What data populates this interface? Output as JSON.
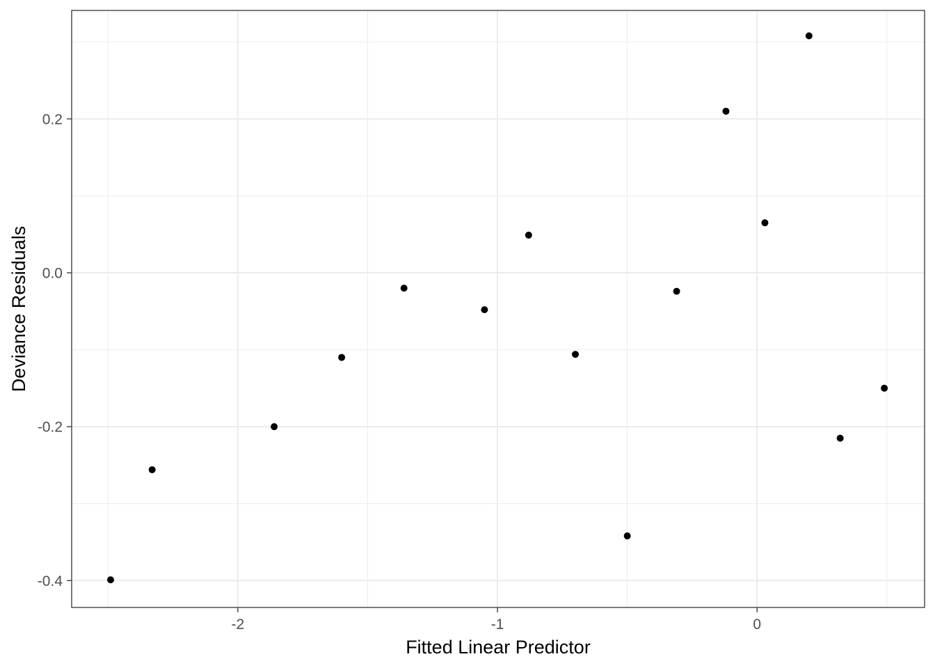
{
  "chart_data": {
    "type": "scatter",
    "title": "",
    "xlabel": "Fitted Linear Predictor",
    "ylabel": "Deviance Residuals",
    "xlim": [
      -2.64,
      0.645
    ],
    "ylim": [
      -0.435,
      0.341
    ],
    "x_ticks": [
      -2,
      -1,
      0
    ],
    "x_tick_labels": [
      "-2",
      "-1",
      "0"
    ],
    "y_ticks": [
      -0.4,
      -0.2,
      0.0,
      0.2
    ],
    "y_tick_labels": [
      "-0.4",
      "-0.2",
      "0.0",
      "0.2"
    ],
    "x_minor_ticks": [
      -2.5,
      -1.5,
      -0.5,
      0.5
    ],
    "y_minor_ticks": [
      -0.3,
      -0.1,
      0.1,
      0.3
    ],
    "grid": true,
    "legend": "none",
    "point_color": "#000000",
    "grid_color": "#ebebeb",
    "border_color": "#333333",
    "points": [
      {
        "x": -2.49,
        "y": -0.399
      },
      {
        "x": -2.33,
        "y": -0.256
      },
      {
        "x": -1.86,
        "y": -0.2
      },
      {
        "x": -1.6,
        "y": -0.11
      },
      {
        "x": -1.36,
        "y": -0.02
      },
      {
        "x": -1.05,
        "y": -0.048
      },
      {
        "x": -0.88,
        "y": 0.049
      },
      {
        "x": -0.7,
        "y": -0.106
      },
      {
        "x": -0.5,
        "y": -0.342
      },
      {
        "x": -0.31,
        "y": -0.024
      },
      {
        "x": -0.12,
        "y": 0.21
      },
      {
        "x": 0.03,
        "y": 0.065
      },
      {
        "x": 0.2,
        "y": 0.308
      },
      {
        "x": 0.32,
        "y": -0.215
      },
      {
        "x": 0.49,
        "y": -0.15
      }
    ]
  }
}
